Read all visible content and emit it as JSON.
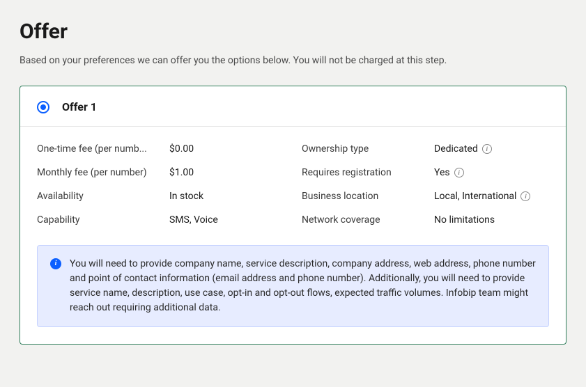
{
  "page": {
    "title": "Offer",
    "subtitle": "Based on your preferences we can offer you the options below. You will not be charged at this step."
  },
  "offer": {
    "title": "Offer 1",
    "selected": true,
    "details": {
      "one_time_fee": {
        "label": "One-time fee (per numb...",
        "value": "$0.00"
      },
      "monthly_fee": {
        "label": "Monthly fee (per number)",
        "value": "$1.00"
      },
      "availability": {
        "label": "Availability",
        "value": "In stock"
      },
      "capability": {
        "label": "Capability",
        "value": "SMS, Voice"
      },
      "ownership_type": {
        "label": "Ownership type",
        "value": "Dedicated",
        "has_info": true
      },
      "requires_registration": {
        "label": "Requires registration",
        "value": "Yes",
        "has_info": true
      },
      "business_location": {
        "label": "Business location",
        "value": "Local, International",
        "has_info": true
      },
      "network_coverage": {
        "label": "Network coverage",
        "value": "No limitations"
      }
    },
    "info_banner": "You will need to provide company name, service description, company address, web address, phone number and point of contact information (email address and phone number). Additionally, you will need to provide service name, description, use case, opt-in and opt-out flows, expected traffic volumes. Infobip team might reach out requiring additional data."
  },
  "colors": {
    "background": "#f2f2f0",
    "card_border": "#2e7d5a",
    "accent_blue": "#0b5fff",
    "banner_bg": "#e7ecff",
    "banner_border": "#c5d2ff"
  }
}
